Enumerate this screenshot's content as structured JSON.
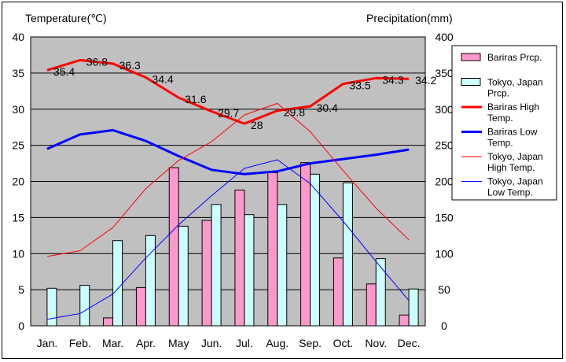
{
  "chart_data": {
    "type": "bar",
    "y_left_label": "Temperature(℃)",
    "y_right_label": "Precipitation(mm)",
    "categories": [
      "Jan.",
      "Feb.",
      "Mar.",
      "Apr.",
      "May",
      "Jun.",
      "Jul.",
      "Aug.",
      "Sep.",
      "Oct.",
      "Nov.",
      "Dec."
    ],
    "y_left_range": [
      0,
      40
    ],
    "y_left_ticks": [
      0,
      5,
      10,
      15,
      20,
      25,
      30,
      35,
      40
    ],
    "y_right_range": [
      0,
      400
    ],
    "y_right_ticks": [
      0,
      50,
      100,
      150,
      200,
      250,
      300,
      350,
      400
    ],
    "plot_background": "#c0c0c0",
    "grid": "horizontal",
    "legend_position": "right",
    "series": [
      {
        "name": "Bariras Prcp.",
        "kind": "bar",
        "axis": "right",
        "color": "#ff99cc",
        "values": [
          0,
          0,
          11,
          53,
          219,
          146,
          188,
          212,
          226,
          94,
          58,
          15
        ]
      },
      {
        "name": "Tokyo, Japan Prcp.",
        "kind": "bar",
        "axis": "right",
        "color": "#ccffff",
        "values": [
          52,
          56,
          118,
          125,
          138,
          168,
          154,
          168,
          210,
          198,
          93,
          51
        ]
      },
      {
        "name": "Bariras High Temp.",
        "kind": "line",
        "axis": "left",
        "color": "#ff0000",
        "width": 3,
        "values": [
          35.4,
          36.8,
          36.3,
          34.4,
          31.6,
          29.7,
          28,
          29.8,
          30.4,
          33.5,
          34.3,
          34.2
        ]
      },
      {
        "name": "Bariras Low Temp.",
        "kind": "line",
        "axis": "left",
        "color": "#0000ff",
        "width": 3,
        "values": [
          24.5,
          26.5,
          27.1,
          25.6,
          23.5,
          21.6,
          21.0,
          21.4,
          22.5,
          23.1,
          23.7,
          24.4
        ]
      },
      {
        "name": "Tokyo, Japan High Temp.",
        "kind": "line",
        "axis": "left",
        "color": "#ff0000",
        "width": 1,
        "values": [
          9.6,
          10.4,
          13.6,
          19.0,
          22.9,
          25.5,
          29.2,
          30.8,
          26.9,
          21.5,
          16.3,
          11.9
        ]
      },
      {
        "name": "Tokyo, Japan Low Temp.",
        "kind": "line",
        "axis": "left",
        "color": "#0000ff",
        "width": 1,
        "values": [
          0.9,
          1.7,
          4.4,
          9.4,
          14.0,
          18.0,
          21.8,
          23.0,
          19.7,
          14.5,
          8.9,
          3.5
        ]
      }
    ],
    "data_labels": [
      "35.4",
      "36.8",
      "36.3",
      "34.4",
      "31.6",
      "29.7",
      "28",
      "29.8",
      "30.4",
      "33.5",
      "34.3",
      "34.2"
    ],
    "legend": [
      {
        "label": "Bariras Prcp.",
        "marker": "box",
        "color": "#ff99cc"
      },
      {
        "label": "Tokyo, Japan Prcp.",
        "marker": "box",
        "color": "#ccffff"
      },
      {
        "label": "Bariras High Temp.",
        "marker": "line",
        "color": "#ff0000",
        "thick": true
      },
      {
        "label": "Bariras Low Temp.",
        "marker": "line",
        "color": "#0000ff",
        "thick": true
      },
      {
        "label": "Tokyo, Japan High Temp.",
        "marker": "line",
        "color": "#ff0000",
        "thick": false
      },
      {
        "label": "Tokyo, Japan Low Temp.",
        "marker": "line",
        "color": "#0000ff",
        "thick": false
      }
    ]
  }
}
